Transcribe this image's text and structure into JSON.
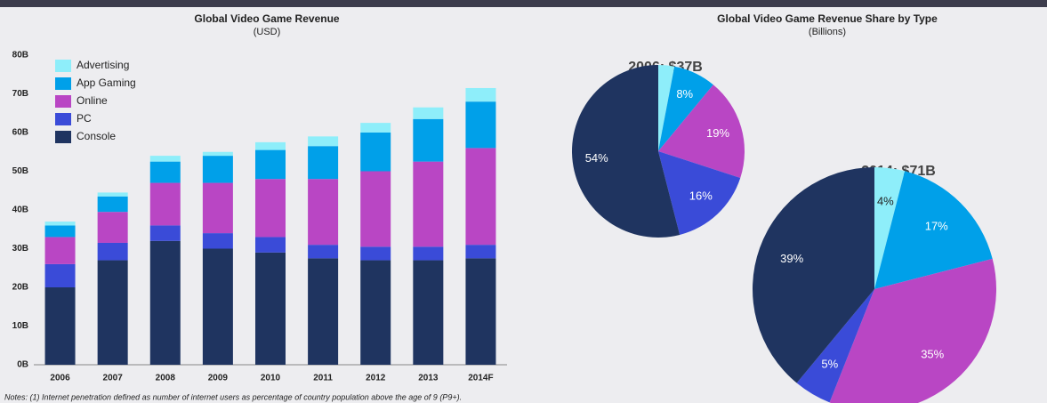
{
  "chart_data": [
    {
      "type": "bar",
      "stacked": true,
      "title": "Global Video Game Revenue",
      "subtitle": "(USD)",
      "categories": [
        "2006",
        "2007",
        "2008",
        "2009",
        "2010",
        "2011",
        "2012",
        "2013",
        "2014F"
      ],
      "series": [
        {
          "name": "Console",
          "color": "#1f3460",
          "values": [
            20,
            27,
            32,
            30,
            29,
            27.5,
            27,
            27,
            27.5
          ]
        },
        {
          "name": "PC",
          "color": "#3a4bd8",
          "values": [
            6,
            4.5,
            4,
            4,
            4,
            3.5,
            3.5,
            3.5,
            3.5
          ]
        },
        {
          "name": "Online",
          "color": "#b946c4",
          "values": [
            7,
            8,
            11,
            13,
            15,
            17,
            19.5,
            22,
            25
          ]
        },
        {
          "name": "App Gaming",
          "color": "#00a0e9",
          "values": [
            3,
            4,
            5.5,
            7,
            7.5,
            8.5,
            10,
            11,
            12
          ]
        },
        {
          "name": "Advertising",
          "color": "#8eeefa",
          "values": [
            1,
            1,
            1.5,
            1,
            2,
            2.5,
            2.5,
            3,
            3.5
          ]
        }
      ],
      "ylim": [
        0,
        80
      ],
      "yticks": [
        {
          "value": 0,
          "label": "0B"
        },
        {
          "value": 10,
          "label": "10B"
        },
        {
          "value": 20,
          "label": "20B"
        },
        {
          "value": 30,
          "label": "30B"
        },
        {
          "value": 40,
          "label": "40B"
        },
        {
          "value": 50,
          "label": "50B"
        },
        {
          "value": 60,
          "label": "60B"
        },
        {
          "value": 70,
          "label": "70B"
        },
        {
          "value": 80,
          "label": "80B"
        }
      ],
      "legend": "upper left",
      "grid": false
    },
    {
      "type": "pie",
      "title": "2006: $37B",
      "categories": [
        "Advertising",
        "App Gaming",
        "Online",
        "PC",
        "Console"
      ],
      "colors": [
        "#8eeefa",
        "#00a0e9",
        "#b946c4",
        "#3a4bd8",
        "#1f3460"
      ],
      "values": [
        3,
        8,
        19,
        16,
        54
      ],
      "value_labels": [
        null,
        "8%",
        "19%",
        "16%",
        "54%"
      ]
    },
    {
      "type": "pie",
      "title": "2014: $71B",
      "categories": [
        "Advertising",
        "App Gaming",
        "Online",
        "PC",
        "Console"
      ],
      "colors": [
        "#8eeefa",
        "#00a0e9",
        "#b946c4",
        "#3a4bd8",
        "#1f3460"
      ],
      "values": [
        4,
        17,
        35,
        5,
        39
      ],
      "value_labels": [
        "4%",
        "17%",
        "35%",
        "5%",
        "39%"
      ]
    }
  ],
  "right_panel": {
    "title": "Global Video Game Revenue Share by Type",
    "subtitle": "(Billions)"
  },
  "notes": "Notes: (1) Internet penetration defined as number of internet users as percentage of country population above the age of 9 (P9+)."
}
